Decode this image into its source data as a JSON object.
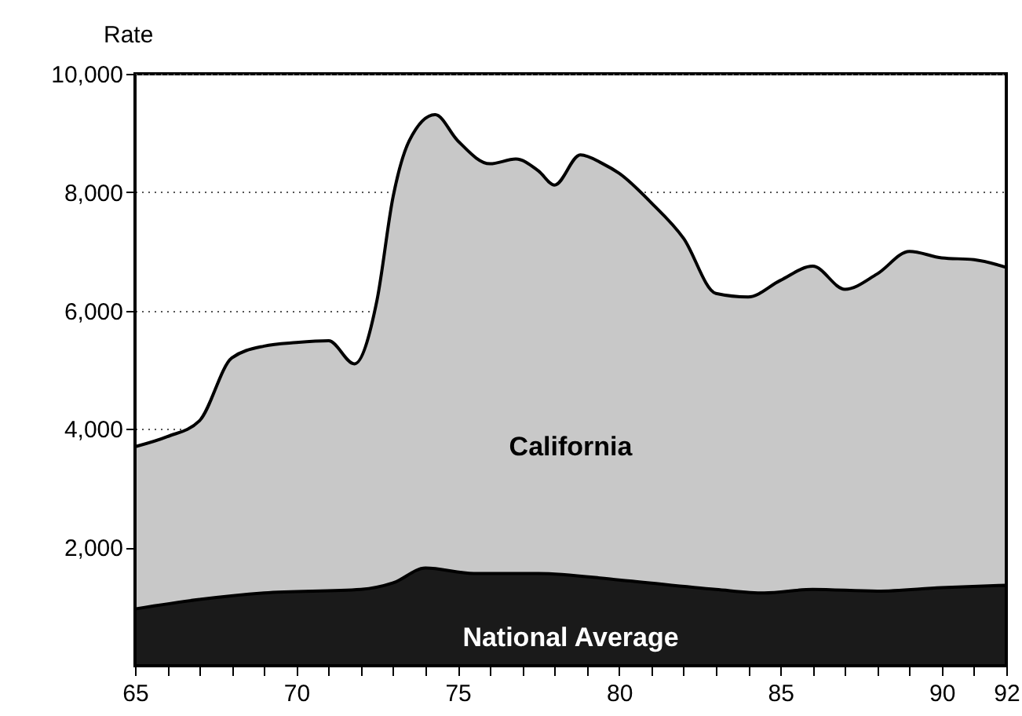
{
  "chart_data": {
    "type": "area",
    "ylabel": "Rate",
    "x": [
      65,
      66,
      67,
      68,
      69,
      70,
      71,
      71.8,
      72.5,
      73,
      73.5,
      74.3,
      75,
      76,
      76.8,
      77.5,
      78,
      78.8,
      79.5,
      80,
      81,
      82,
      83,
      84,
      85,
      86,
      87,
      88,
      89,
      90,
      91,
      92
    ],
    "series": [
      {
        "name": "California",
        "color": "#c8c8c8",
        "values": [
          3700,
          3870,
          4140,
          5200,
          5400,
          5460,
          5490,
          5100,
          6180,
          7930,
          8870,
          9310,
          8870,
          8480,
          8560,
          8360,
          8120,
          8630,
          8480,
          8320,
          7820,
          7220,
          6290,
          6230,
          6510,
          6750,
          6360,
          6620,
          7000,
          6890,
          6860,
          6730
        ]
      },
      {
        "name": "National Average",
        "color": "#1a1a1a",
        "x": [
          65,
          67,
          69,
          72,
          73,
          74,
          75.5,
          77.5,
          80,
          83,
          84.5,
          86,
          88,
          90,
          92
        ],
        "values": [
          960,
          1120,
          1230,
          1290,
          1400,
          1650,
          1560,
          1560,
          1450,
          1290,
          1230,
          1290,
          1260,
          1320,
          1360
        ]
      }
    ],
    "xlim": [
      65,
      92
    ],
    "xticks": [
      65,
      {
        "value": 66,
        "label": null
      },
      {
        "value": 67,
        "label": null
      },
      {
        "value": 68,
        "label": null
      },
      {
        "value": 69,
        "label": null
      },
      70,
      {
        "value": 71,
        "label": null
      },
      {
        "value": 72,
        "label": null
      },
      {
        "value": 73,
        "label": null
      },
      {
        "value": 74,
        "label": null
      },
      75,
      {
        "value": 76,
        "label": null
      },
      {
        "value": 77,
        "label": null
      },
      {
        "value": 78,
        "label": null
      },
      {
        "value": 79,
        "label": null
      },
      80,
      {
        "value": 81,
        "label": null
      },
      {
        "value": 82,
        "label": null
      },
      {
        "value": 83,
        "label": null
      },
      {
        "value": 84,
        "label": null
      },
      85,
      {
        "value": 86,
        "label": null
      },
      {
        "value": 87,
        "label": null
      },
      {
        "value": 88,
        "label": null
      },
      {
        "value": 89,
        "label": null
      },
      90,
      {
        "value": 91,
        "label": null
      },
      92
    ],
    "ylim": [
      0,
      10000
    ],
    "yticks": [
      {
        "value": 2000,
        "label": "2,000"
      },
      {
        "value": 4000,
        "label": "4,000"
      },
      {
        "value": 6000,
        "label": "6,000"
      },
      {
        "value": 8000,
        "label": "8,000"
      },
      {
        "value": 10000,
        "label": "10,000"
      }
    ],
    "grid": "y"
  }
}
